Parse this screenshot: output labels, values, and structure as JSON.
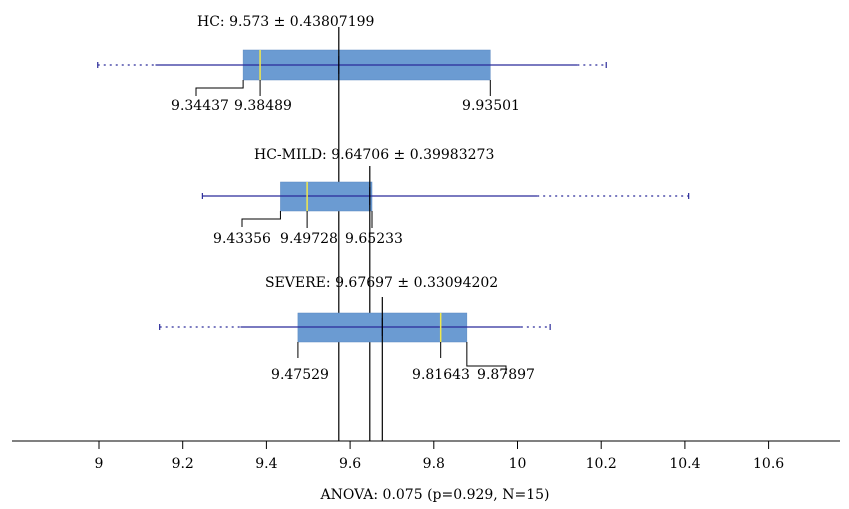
{
  "chart_data": {
    "type": "box",
    "title": "",
    "xlabel": "ANOVA: 0.075 (p=0.929, N=15)",
    "xlim": [
      8.78,
      10.79
    ],
    "x_ticks": [
      9,
      9.2,
      9.4,
      9.6,
      9.8,
      10,
      10.2,
      10.4,
      10.6
    ],
    "x_tick_labels": [
      "9",
      "9.2",
      "9.4",
      "9.6",
      "9.8",
      "10",
      "10.2",
      "10.4",
      "10.6"
    ],
    "groups": [
      {
        "name": "HC",
        "mean": 9.573,
        "sd": 0.43807199,
        "header": "HC: 9.573 ± 0.43807199",
        "q1": 9.34437,
        "median": 9.38489,
        "q3": 9.93501,
        "whisker_low": 9.135,
        "whisker_high": 10.143,
        "min": 8.997,
        "max": 10.212,
        "value_labels": [
          "9.34437",
          "9.38489",
          "9.93501"
        ]
      },
      {
        "name": "HC-MILD",
        "mean": 9.64706,
        "sd": 0.39983273,
        "header": "HC-MILD: 9.64706 ± 0.39983273",
        "q1": 9.43356,
        "median": 9.49728,
        "q3": 9.65233,
        "whisker_low": 9.247,
        "whisker_high": 10.047,
        "min": 9.247,
        "max": 10.409,
        "value_labels": [
          "9.43356",
          "9.49728",
          "9.65233"
        ]
      },
      {
        "name": "SEVERE",
        "mean": 9.67697,
        "sd": 0.33094202,
        "header": "SEVERE: 9.67697 ± 0.33094202",
        "q1": 9.47529,
        "median": 9.81643,
        "q3": 9.87897,
        "whisker_low": 9.338,
        "whisker_high": 10.008,
        "min": 9.145,
        "max": 10.078,
        "value_labels": [
          "9.47529",
          "9.81643",
          "9.87897"
        ]
      }
    ],
    "colors": {
      "box_fill": "#6b9bd2",
      "whisker": "#2b2b9a",
      "median": "#f2e84b",
      "mean_tick": "#1f2a7a",
      "axis": "#000000",
      "text": "#000000"
    }
  }
}
